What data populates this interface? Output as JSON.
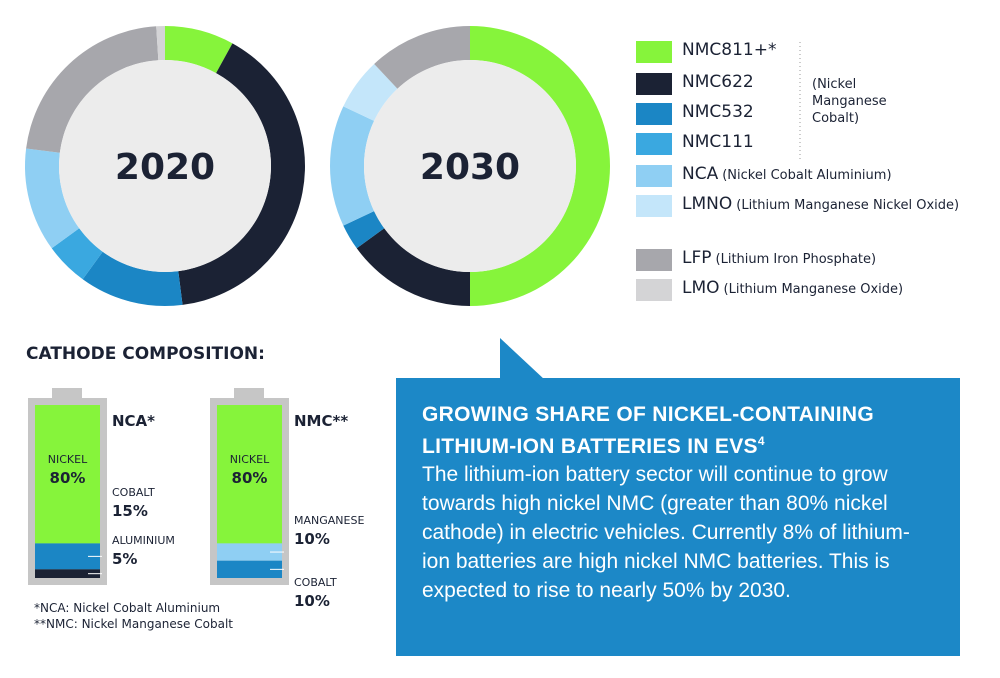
{
  "chart_data": [
    {
      "type": "donut",
      "center_label": "2020",
      "categories": [
        "NMC811+*",
        "NMC622",
        "NMC532",
        "NMC111",
        "NCA",
        "LMNO",
        "LFP",
        "LMO"
      ],
      "colors": [
        "#86f43b",
        "#1b2234",
        "#1b86c5",
        "#3aa8e0",
        "#8fcff3",
        "#c4e6fa",
        "#a7a7ac",
        "#d4d4d6"
      ],
      "values": [
        8,
        40,
        12,
        5,
        12,
        0,
        22,
        1
      ]
    },
    {
      "type": "donut",
      "center_label": "2030",
      "categories": [
        "NMC811+*",
        "NMC622",
        "NMC532",
        "NMC111",
        "NCA",
        "LMNO",
        "LFP",
        "LMO"
      ],
      "colors": [
        "#86f43b",
        "#1b2234",
        "#1b86c5",
        "#3aa8e0",
        "#8fcff3",
        "#c4e6fa",
        "#a7a7ac",
        "#d4d4d6"
      ],
      "values": [
        50,
        15,
        3,
        0,
        14,
        6,
        12,
        0
      ]
    }
  ],
  "legend_notes": {
    "NCA": "(Nickel Cobalt Aluminium)",
    "LMNO": "(Lithium Manganese Nickel Oxide)",
    "LFP": "(Lithium Iron Phosphate)",
    "LMO": "(Lithium Manganese Oxide)"
  },
  "legend_group_note": "(Nickel Manganese Cobalt)",
  "cathode": {
    "title": "CATHODE COMPOSITION:",
    "batteries": [
      {
        "name": "NCA*",
        "components": [
          {
            "name": "NICKEL",
            "value": 80,
            "value_label": "80%",
            "color": "#86f43b"
          },
          {
            "name": "COBALT",
            "value": 15,
            "value_label": "15%",
            "color": "#1b86c5"
          },
          {
            "name": "ALUMINIUM",
            "value": 5,
            "value_label": "5%",
            "color": "#1b2234"
          }
        ]
      },
      {
        "name": "NMC**",
        "components": [
          {
            "name": "NICKEL",
            "value": 80,
            "value_label": "80%",
            "color": "#86f43b"
          },
          {
            "name": "MANGANESE",
            "value": 10,
            "value_label": "10%",
            "color": "#8fcff3"
          },
          {
            "name": "COBALT",
            "value": 10,
            "value_label": "10%",
            "color": "#1b86c5"
          }
        ]
      }
    ],
    "footnotes": [
      "*NCA: Nickel Cobalt Aluminium",
      "**NMC: Nickel Manganese Cobalt"
    ]
  },
  "callout": {
    "title": "GROWING SHARE OF NICKEL-CONTAINING LITHIUM-ION BATTERIES IN EVS",
    "superscript": "4",
    "body": "The lithium-ion battery sector will continue to grow towards high nickel NMC (greater than 80% nickel cathode) in electric vehicles. Currently 8% of lithium-ion batteries are high nickel NMC batteries. This is expected to rise to nearly 50% by 2030."
  }
}
